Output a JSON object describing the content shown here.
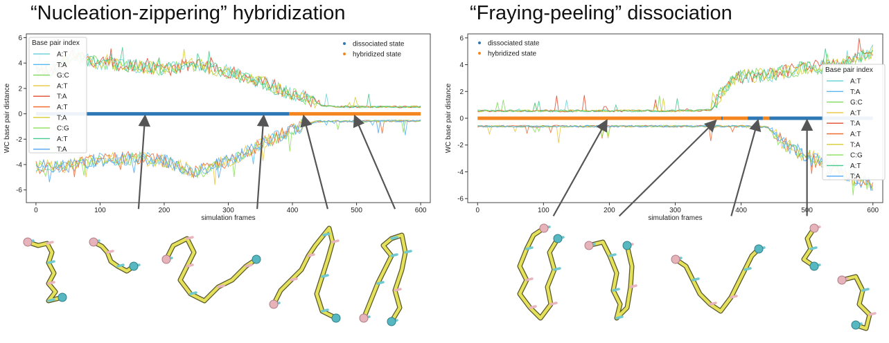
{
  "titles": {
    "left": "“Nucleation-zippering” hybridization",
    "right": "“Fraying-peeling” dissociation"
  },
  "chart_data": [
    {
      "type": "line",
      "title": "“Nucleation-zippering” hybridization",
      "xlabel": "simulation frames",
      "ylabel": "WC base pair distance",
      "xlim": [
        -15,
        615
      ],
      "ylim": [
        -7,
        6.3
      ],
      "xticks": [
        0,
        100,
        200,
        300,
        400,
        500,
        600
      ],
      "yticks": [
        -6,
        -4,
        -2,
        0,
        2,
        4,
        6
      ],
      "legend_title": "Base pair index",
      "legend_placement": "upper-left",
      "legend_entries": [
        "A:T",
        "T:A",
        "G:C",
        "A:T",
        "T:A",
        "A:T",
        "T:A",
        "C:G",
        "A:T",
        "T:A"
      ],
      "series_colors": [
        "#6ed3d8",
        "#59b8ef",
        "#7fd95f",
        "#e9c53c",
        "#e2482f",
        "#f06a33",
        "#d7cc30",
        "#8be05a",
        "#46c98f",
        "#52a5f2"
      ],
      "state_legend": {
        "placement": "upper-right",
        "entries": [
          {
            "name": "dissociated state",
            "color": "#2e78b5"
          },
          {
            "name": "hybridized state",
            "color": "#f5861f"
          }
        ]
      },
      "state_segments": [
        {
          "state": "dissociated",
          "from": 0,
          "to": 395,
          "value": 0
        },
        {
          "state": "hybridized",
          "from": 395,
          "to": 600,
          "value": 0
        }
      ],
      "upper_envelope": [
        {
          "x": 0,
          "y": 3.3
        },
        {
          "x": 30,
          "y": 3.4
        },
        {
          "x": 60,
          "y": 4.6
        },
        {
          "x": 100,
          "y": 4.0
        },
        {
          "x": 150,
          "y": 3.8
        },
        {
          "x": 200,
          "y": 3.5
        },
        {
          "x": 250,
          "y": 3.9
        },
        {
          "x": 300,
          "y": 3.3
        },
        {
          "x": 350,
          "y": 2.5
        },
        {
          "x": 380,
          "y": 1.9
        },
        {
          "x": 400,
          "y": 1.6
        },
        {
          "x": 420,
          "y": 1.3
        },
        {
          "x": 440,
          "y": 0.8
        },
        {
          "x": 450,
          "y": 0.6
        },
        {
          "x": 500,
          "y": 0.55
        },
        {
          "x": 600,
          "y": 0.55
        }
      ],
      "lower_envelope": [
        {
          "x": 0,
          "y": -4.2
        },
        {
          "x": 50,
          "y": -4.1
        },
        {
          "x": 100,
          "y": -3.6
        },
        {
          "x": 150,
          "y": -3.5
        },
        {
          "x": 200,
          "y": -3.7
        },
        {
          "x": 250,
          "y": -4.6
        },
        {
          "x": 300,
          "y": -3.7
        },
        {
          "x": 350,
          "y": -2.4
        },
        {
          "x": 400,
          "y": -1.3
        },
        {
          "x": 420,
          "y": -0.8
        },
        {
          "x": 440,
          "y": -0.6
        },
        {
          "x": 600,
          "y": -0.55
        }
      ],
      "annotations": [
        {
          "type": "arrow",
          "from": [
            160,
            -7.5
          ],
          "to": [
            170,
            0
          ]
        },
        {
          "type": "arrow",
          "from": [
            345,
            -7.5
          ],
          "to": [
            355,
            0
          ]
        },
        {
          "type": "arrow",
          "from": [
            455,
            -7.5
          ],
          "to": [
            418,
            0
          ]
        },
        {
          "type": "arrow",
          "from": [
            560,
            -7.5
          ],
          "to": [
            498,
            0
          ]
        }
      ]
    },
    {
      "type": "line",
      "title": "“Fraying-peeling” dissociation",
      "xlabel": "simulation frames",
      "ylabel": "WC base pair distance",
      "xlim": [
        -15,
        615
      ],
      "ylim": [
        -6.3,
        6.3
      ],
      "xticks": [
        0,
        100,
        200,
        300,
        400,
        500,
        600
      ],
      "yticks": [
        -6,
        -4,
        -2,
        0,
        2,
        4,
        6
      ],
      "legend_title": "Base pair index",
      "legend_placement": "center-right",
      "legend_entries": [
        "A:T",
        "T:A",
        "G:C",
        "A:T",
        "T:A",
        "A:T",
        "T:A",
        "C:G",
        "A:T",
        "T:A"
      ],
      "series_colors": [
        "#6ed3d8",
        "#59b8ef",
        "#7fd95f",
        "#e9c53c",
        "#e2482f",
        "#f06a33",
        "#d7cc30",
        "#8be05a",
        "#46c98f",
        "#52a5f2"
      ],
      "state_legend": {
        "placement": "upper-left",
        "entries": [
          {
            "name": "dissociated state",
            "color": "#2e78b5"
          },
          {
            "name": "hybridized state",
            "color": "#f5861f"
          }
        ]
      },
      "state_segments": [
        {
          "state": "hybridized",
          "from": 0,
          "to": 370,
          "value": 0
        },
        {
          "state": "dissociated",
          "from": 370,
          "to": 372,
          "value": 0
        },
        {
          "state": "hybridized",
          "from": 372,
          "to": 410,
          "value": 0
        },
        {
          "state": "dissociated",
          "from": 410,
          "to": 433,
          "value": 0
        },
        {
          "state": "hybridized",
          "from": 433,
          "to": 443,
          "value": 0
        },
        {
          "state": "dissociated",
          "from": 443,
          "to": 600,
          "value": 0
        }
      ],
      "upper_envelope": [
        {
          "x": 0,
          "y": 0.55
        },
        {
          "x": 300,
          "y": 0.55
        },
        {
          "x": 355,
          "y": 0.6
        },
        {
          "x": 365,
          "y": 1.5
        },
        {
          "x": 380,
          "y": 2.5
        },
        {
          "x": 400,
          "y": 3.1
        },
        {
          "x": 450,
          "y": 3.3
        },
        {
          "x": 500,
          "y": 3.8
        },
        {
          "x": 550,
          "y": 3.9
        },
        {
          "x": 575,
          "y": 4.5
        },
        {
          "x": 600,
          "y": 5.0
        }
      ],
      "lower_envelope": [
        {
          "x": 0,
          "y": -0.6
        },
        {
          "x": 400,
          "y": -0.6
        },
        {
          "x": 440,
          "y": -0.65
        },
        {
          "x": 450,
          "y": -1.2
        },
        {
          "x": 470,
          "y": -2.1
        },
        {
          "x": 500,
          "y": -2.8
        },
        {
          "x": 530,
          "y": -3.3
        },
        {
          "x": 560,
          "y": -4.2
        },
        {
          "x": 600,
          "y": -5.0
        }
      ],
      "annotations": [
        {
          "type": "arrow",
          "from": [
            115,
            -7.3
          ],
          "to": [
            195,
            0
          ]
        },
        {
          "type": "arrow",
          "from": [
            215,
            -7.3
          ],
          "to": [
            360,
            0
          ]
        },
        {
          "type": "arrow",
          "from": [
            385,
            -7.3
          ],
          "to": [
            425,
            0
          ]
        },
        {
          "type": "arrow",
          "from": [
            500,
            -7.3
          ],
          "to": [
            500,
            0
          ]
        }
      ]
    }
  ]
}
